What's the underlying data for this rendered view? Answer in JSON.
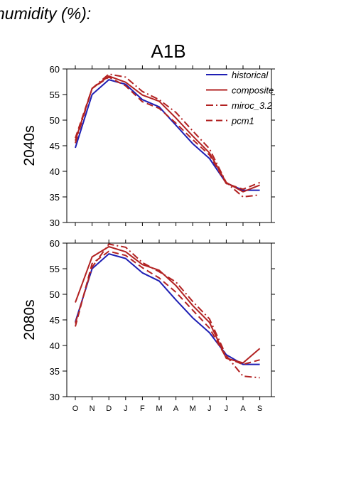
{
  "heading": "humidity (%):",
  "scenario": "A1B",
  "colors": {
    "historical": "#1f1fb4",
    "model": "#b22222"
  },
  "chart_data": [
    {
      "type": "line",
      "panel": "2040s",
      "x": [
        "O",
        "N",
        "D",
        "J",
        "F",
        "M",
        "A",
        "M",
        "J",
        "J",
        "A",
        "S"
      ],
      "ylim": [
        30,
        60
      ],
      "yticks": [
        30,
        35,
        40,
        45,
        50,
        55,
        60
      ],
      "legend": "top-right",
      "series": [
        {
          "name": "historical",
          "dash": "solid",
          "color": "#1f1fb4",
          "values": [
            44.6,
            55.0,
            57.9,
            57.0,
            54.0,
            52.6,
            49.0,
            45.4,
            42.5,
            37.7,
            36.3,
            36.3
          ]
        },
        {
          "name": "composite",
          "dash": "solid",
          "color": "#b22222",
          "values": [
            46.0,
            56.2,
            58.6,
            57.4,
            54.9,
            53.7,
            50.4,
            46.9,
            43.6,
            37.8,
            36.0,
            37.3
          ]
        },
        {
          "name": "miroc_3.2",
          "dash": "dashdot",
          "color": "#b22222",
          "values": [
            45.5,
            56.2,
            59.0,
            58.4,
            55.6,
            54.0,
            51.5,
            47.9,
            44.4,
            37.8,
            35.0,
            35.4
          ]
        },
        {
          "name": "pcm1",
          "dash": "dash",
          "color": "#b22222",
          "values": [
            46.5,
            56.2,
            58.4,
            56.7,
            53.6,
            52.3,
            49.4,
            46.2,
            43.2,
            37.6,
            36.5,
            37.8
          ]
        }
      ]
    },
    {
      "type": "line",
      "panel": "2080s",
      "x": [
        "O",
        "N",
        "D",
        "J",
        "F",
        "M",
        "A",
        "M",
        "J",
        "J",
        "A",
        "S"
      ],
      "ylim": [
        30,
        60
      ],
      "yticks": [
        30,
        35,
        40,
        45,
        50,
        55,
        60
      ],
      "series": [
        {
          "name": "historical",
          "dash": "solid",
          "color": "#1f1fb4",
          "values": [
            44.6,
            55.0,
            57.9,
            57.0,
            54.2,
            52.6,
            48.9,
            45.4,
            42.5,
            38.2,
            36.3,
            36.3
          ]
        },
        {
          "name": "composite",
          "dash": "solid",
          "color": "#b22222",
          "values": [
            48.4,
            57.3,
            59.3,
            58.3,
            55.8,
            54.7,
            51.7,
            47.8,
            44.5,
            37.5,
            36.6,
            39.4
          ]
        },
        {
          "name": "miroc_3.2",
          "dash": "dashdot",
          "color": "#b22222",
          "values": [
            44.3,
            55.3,
            59.8,
            59.2,
            56.2,
            54.4,
            52.4,
            48.6,
            45.2,
            38.0,
            34.0,
            33.7
          ]
        },
        {
          "name": "pcm1",
          "dash": "dash",
          "color": "#b22222",
          "values": [
            43.7,
            56.0,
            58.4,
            57.6,
            55.2,
            53.2,
            50.4,
            46.9,
            43.4,
            37.6,
            36.3,
            37.2
          ]
        }
      ]
    }
  ]
}
